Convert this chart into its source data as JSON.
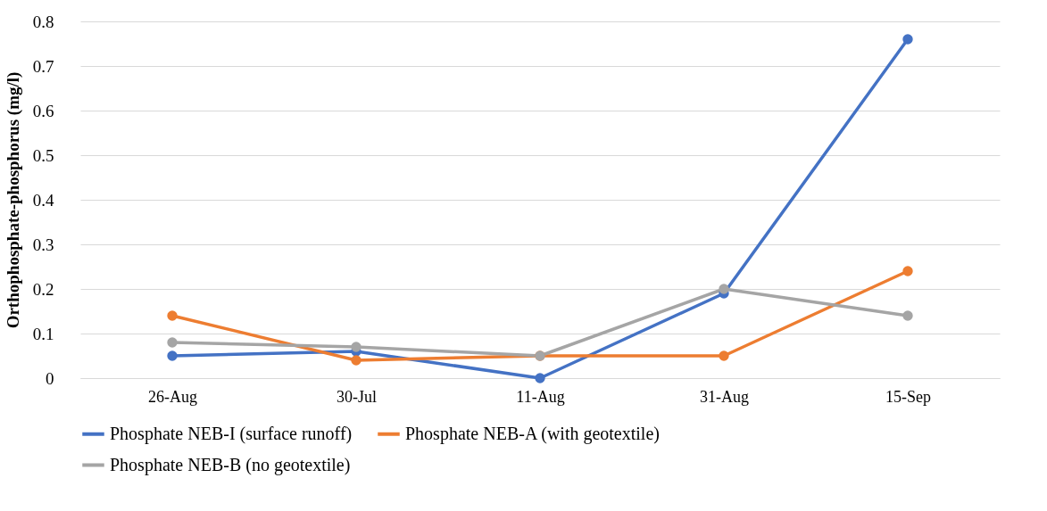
{
  "chart_data": {
    "type": "line",
    "ylabel": "Orthophosphate-phosphorus  (mg/l)",
    "categories": [
      "26-Aug",
      "30-Jul",
      "11-Aug",
      "31-Aug",
      "15-Sep"
    ],
    "series": [
      {
        "name": "Phosphate NEB-I (surface runoff)",
        "color": "#4472c4",
        "values": [
          0.05,
          0.06,
          0,
          0.19,
          0.76
        ]
      },
      {
        "name": "Phosphate NEB-A (with geotextile)",
        "color": "#ed7d31",
        "values": [
          0.14,
          0.04,
          0.05,
          0.05,
          0.24
        ]
      },
      {
        "name": "Phosphate NEB-B (no geotextile)",
        "color": "#a5a5a5",
        "values": [
          0.08,
          0.07,
          0.05,
          0.2,
          0.14
        ]
      }
    ],
    "ylim": [
      0,
      0.8
    ],
    "yticks": [
      0,
      0.1,
      0.2,
      0.3,
      0.4,
      0.5,
      0.6,
      0.7,
      0.8
    ],
    "grid": "y",
    "legend": "bottom",
    "marker": "circle",
    "line_style": "solid"
  }
}
